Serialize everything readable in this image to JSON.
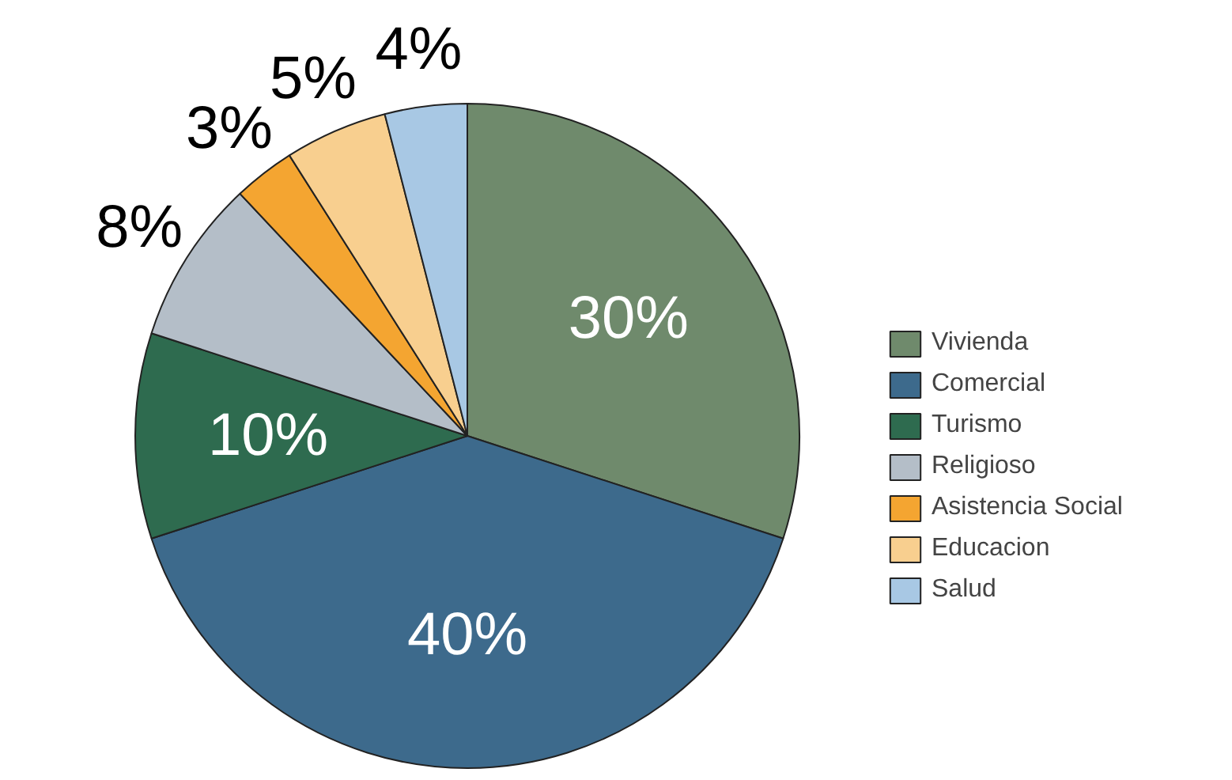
{
  "chart_data": {
    "type": "pie",
    "categories": [
      "Vivienda",
      "Comercial",
      "Turismo",
      "Religioso",
      "Asistencia Social",
      "Educacion",
      "Salud"
    ],
    "values": [
      30,
      40,
      10,
      8,
      3,
      5,
      4
    ],
    "colors": [
      "#6f8a6c",
      "#3d6a8c",
      "#2e6b4f",
      "#b4bec8",
      "#f4a531",
      "#f8cf8f",
      "#a8c8e4"
    ],
    "value_labels": [
      "30%",
      "40%",
      "10%",
      "8%",
      "3%",
      "5%",
      "4%"
    ],
    "legend": "right"
  }
}
